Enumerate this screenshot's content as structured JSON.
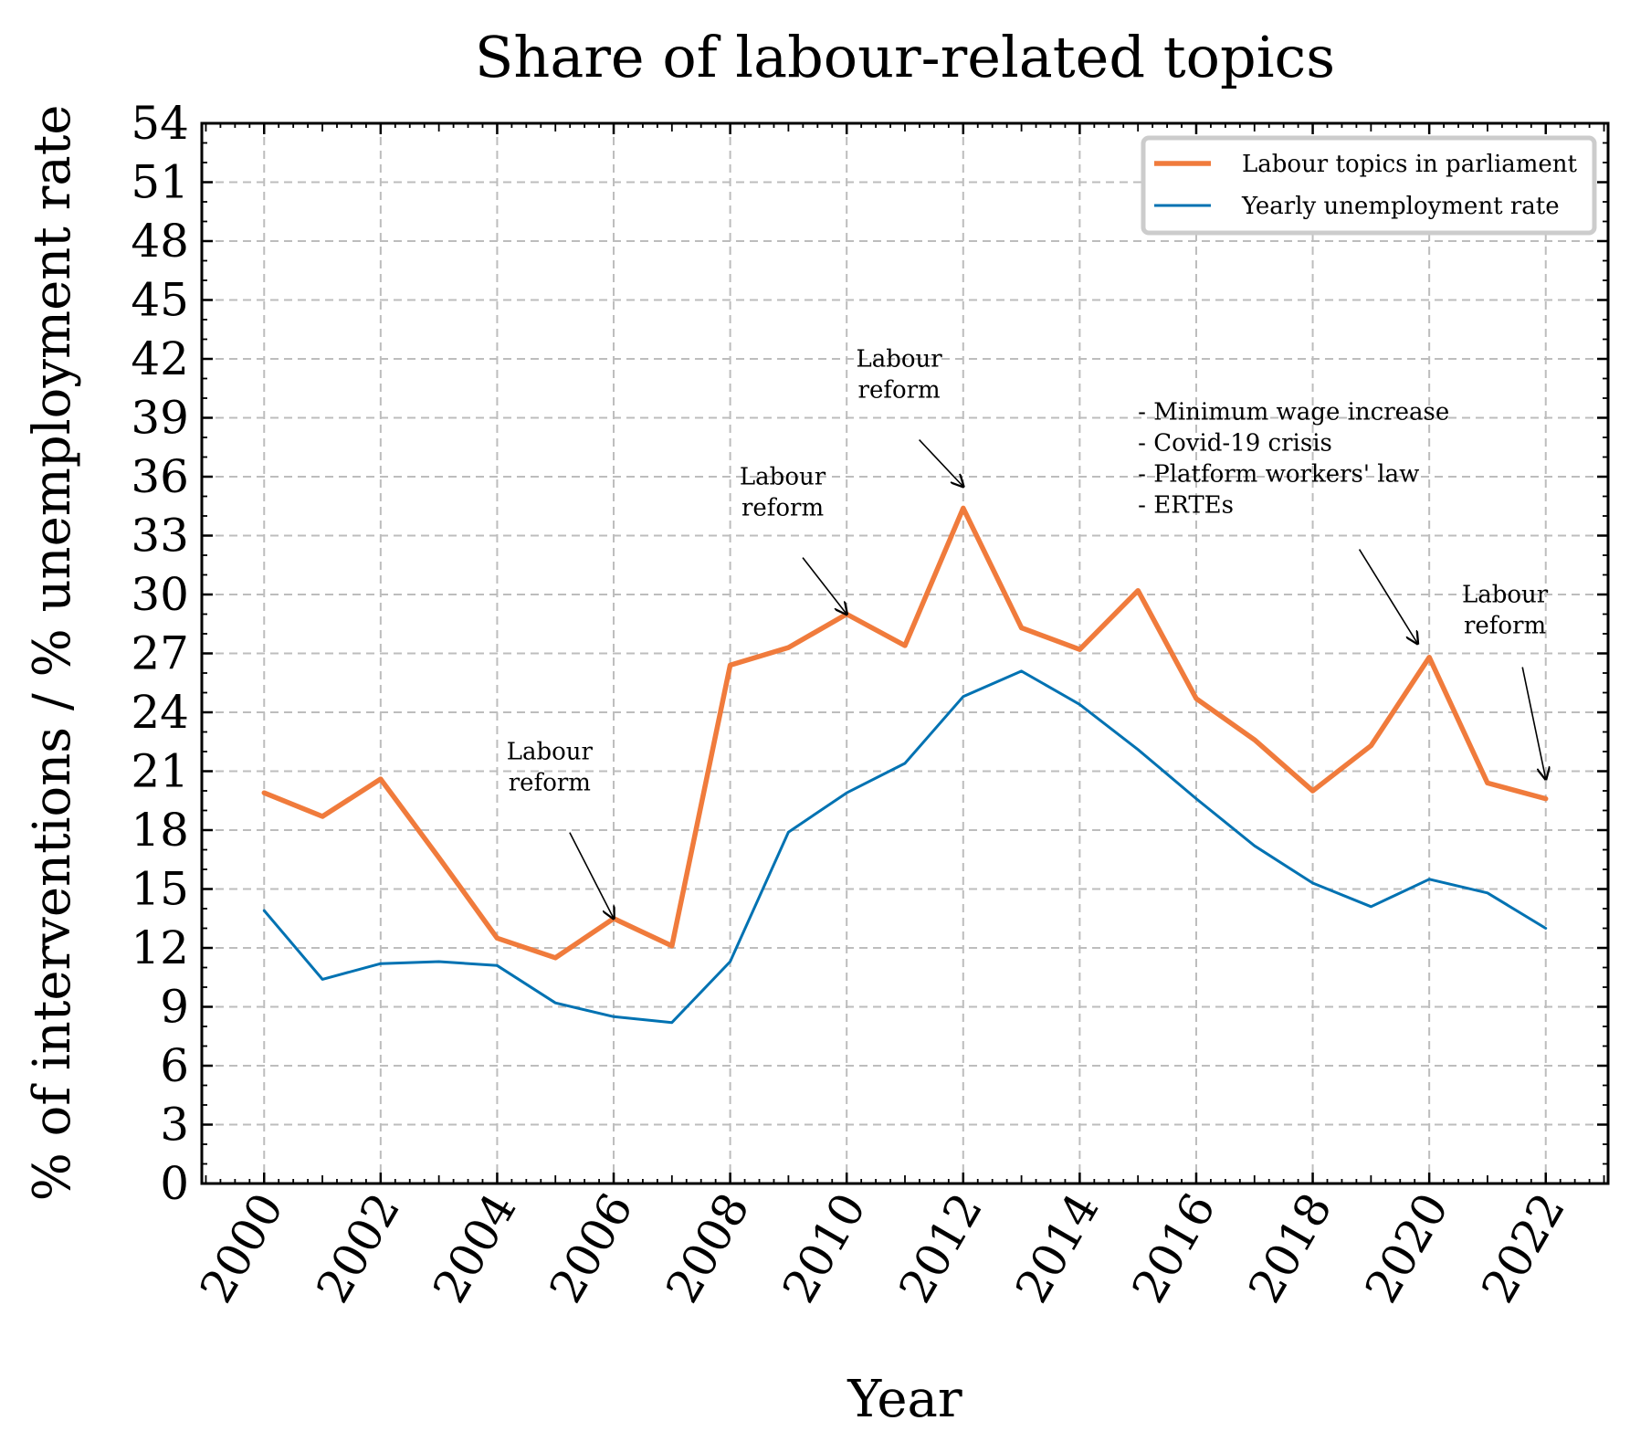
{
  "chart_data": {
    "type": "line",
    "title": "Share of labour-related topics",
    "xlabel": "Year",
    "ylabel": "% of interventions / % unemployment rate",
    "x": [
      2000,
      2001,
      2002,
      2003,
      2004,
      2005,
      2006,
      2007,
      2008,
      2009,
      2010,
      2011,
      2012,
      2013,
      2014,
      2015,
      2016,
      2017,
      2018,
      2019,
      2020,
      2021,
      2022
    ],
    "xticks": [
      "2000",
      "2002",
      "2004",
      "2006",
      "2008",
      "2010",
      "2012",
      "2014",
      "2016",
      "2018",
      "2020",
      "2022"
    ],
    "xlim": [
      1998.93,
      2023.07
    ],
    "ylim": [
      0,
      54
    ],
    "yticks": [
      "0",
      "3",
      "6",
      "9",
      "12",
      "15",
      "18",
      "21",
      "24",
      "27",
      "30",
      "33",
      "36",
      "39",
      "42",
      "45",
      "48",
      "51",
      "54"
    ],
    "grid": true,
    "legend_position": "top-right",
    "series": [
      {
        "name": "Labour topics in parliament",
        "color": "#f07b3c",
        "values": [
          19.9,
          18.7,
          20.6,
          16.6,
          12.5,
          11.5,
          13.5,
          12.1,
          26.4,
          27.3,
          29.0,
          27.4,
          34.4,
          28.3,
          27.2,
          30.2,
          24.7,
          22.6,
          20.0,
          22.3,
          26.8,
          20.4,
          19.6
        ]
      },
      {
        "name": "Yearly unemployment rate",
        "color": "#0072b2",
        "values": [
          13.9,
          10.4,
          11.2,
          11.3,
          11.1,
          9.2,
          8.5,
          8.2,
          11.3,
          17.9,
          19.9,
          21.4,
          24.8,
          26.1,
          24.4,
          22.1,
          19.6,
          17.2,
          15.3,
          14.1,
          15.5,
          14.8,
          13.0
        ]
      }
    ],
    "annotations": [
      {
        "id": "reform-2006",
        "lines": [
          "Labour",
          "reform"
        ],
        "target": [
          2006,
          13.5
        ],
        "text_pos": [
          2004.9,
          21.6
        ]
      },
      {
        "id": "reform-2010",
        "lines": [
          "Labour",
          "reform"
        ],
        "target": [
          2010,
          29.0
        ],
        "text_pos": [
          2008.9,
          35.6
        ]
      },
      {
        "id": "reform-2012",
        "lines": [
          "Labour",
          "reform"
        ],
        "target": [
          2012,
          35.5
        ],
        "text_pos": [
          2010.9,
          41.6
        ]
      },
      {
        "id": "events-2020",
        "lines": [
          "- Minimum wage increase",
          "- Covid-19 crisis",
          "- Platform workers' law",
          "- ERTEs"
        ],
        "target": [
          2019.8,
          27.5
        ],
        "text_pos": [
          2015.0,
          38.9
        ],
        "arrow_from": [
          2018.8,
          32.3
        ],
        "align": "start"
      },
      {
        "id": "reform-2022",
        "lines": [
          "Labour",
          "reform"
        ],
        "target": [
          2022,
          20.6
        ],
        "text_pos": [
          2021.3,
          29.6
        ],
        "arrow_from": [
          2021.6,
          26.3
        ]
      }
    ]
  }
}
